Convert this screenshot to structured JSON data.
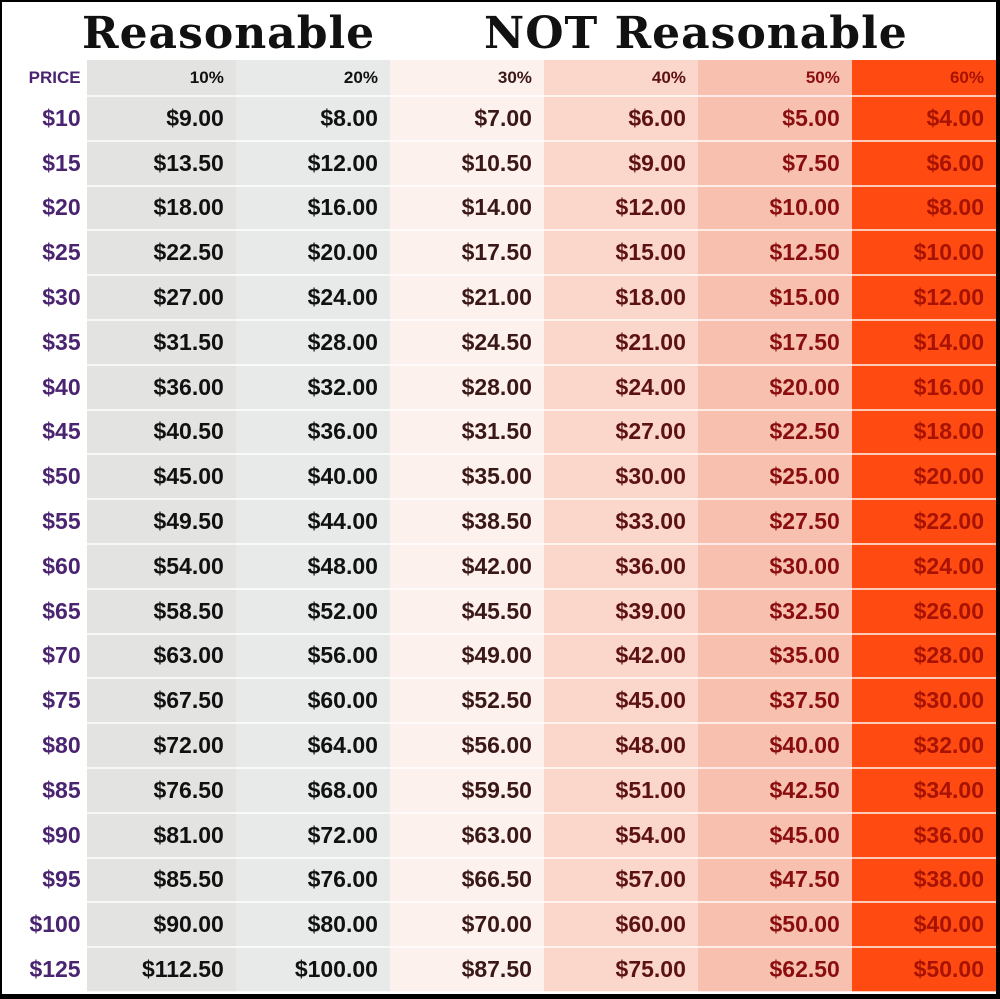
{
  "titles": {
    "reasonable": "Reasonable",
    "not_reasonable": "NOT Reasonable"
  },
  "colors": {
    "price_col": "#ffffff",
    "p10": "#e3e4e1",
    "p20": "#e7eae9",
    "p30": "#fdf1ed",
    "p40": "#fbd6ca",
    "p50": "#f8c0af",
    "p60": "#ff4a12"
  },
  "headers": [
    "PRICE",
    "10%",
    "20%",
    "30%",
    "40%",
    "50%",
    "60%"
  ],
  "rows": [
    [
      "$10",
      "$9.00",
      "$8.00",
      "$7.00",
      "$6.00",
      "$5.00",
      "$4.00"
    ],
    [
      "$15",
      "$13.50",
      "$12.00",
      "$10.50",
      "$9.00",
      "$7.50",
      "$6.00"
    ],
    [
      "$20",
      "$18.00",
      "$16.00",
      "$14.00",
      "$12.00",
      "$10.00",
      "$8.00"
    ],
    [
      "$25",
      "$22.50",
      "$20.00",
      "$17.50",
      "$15.00",
      "$12.50",
      "$10.00"
    ],
    [
      "$30",
      "$27.00",
      "$24.00",
      "$21.00",
      "$18.00",
      "$15.00",
      "$12.00"
    ],
    [
      "$35",
      "$31.50",
      "$28.00",
      "$24.50",
      "$21.00",
      "$17.50",
      "$14.00"
    ],
    [
      "$40",
      "$36.00",
      "$32.00",
      "$28.00",
      "$24.00",
      "$20.00",
      "$16.00"
    ],
    [
      "$45",
      "$40.50",
      "$36.00",
      "$31.50",
      "$27.00",
      "$22.50",
      "$18.00"
    ],
    [
      "$50",
      "$45.00",
      "$40.00",
      "$35.00",
      "$30.00",
      "$25.00",
      "$20.00"
    ],
    [
      "$55",
      "$49.50",
      "$44.00",
      "$38.50",
      "$33.00",
      "$27.50",
      "$22.00"
    ],
    [
      "$60",
      "$54.00",
      "$48.00",
      "$42.00",
      "$36.00",
      "$30.00",
      "$24.00"
    ],
    [
      "$65",
      "$58.50",
      "$52.00",
      "$45.50",
      "$39.00",
      "$32.50",
      "$26.00"
    ],
    [
      "$70",
      "$63.00",
      "$56.00",
      "$49.00",
      "$42.00",
      "$35.00",
      "$28.00"
    ],
    [
      "$75",
      "$67.50",
      "$60.00",
      "$52.50",
      "$45.00",
      "$37.50",
      "$30.00"
    ],
    [
      "$80",
      "$72.00",
      "$64.00",
      "$56.00",
      "$48.00",
      "$40.00",
      "$32.00"
    ],
    [
      "$85",
      "$76.50",
      "$68.00",
      "$59.50",
      "$51.00",
      "$42.50",
      "$34.00"
    ],
    [
      "$90",
      "$81.00",
      "$72.00",
      "$63.00",
      "$54.00",
      "$45.00",
      "$36.00"
    ],
    [
      "$95",
      "$85.50",
      "$76.00",
      "$66.50",
      "$57.00",
      "$47.50",
      "$38.00"
    ],
    [
      "$100",
      "$90.00",
      "$80.00",
      "$70.00",
      "$60.00",
      "$50.00",
      "$40.00"
    ],
    [
      "$125",
      "$112.50",
      "$100.00",
      "$87.50",
      "$75.00",
      "$62.50",
      "$50.00"
    ]
  ]
}
